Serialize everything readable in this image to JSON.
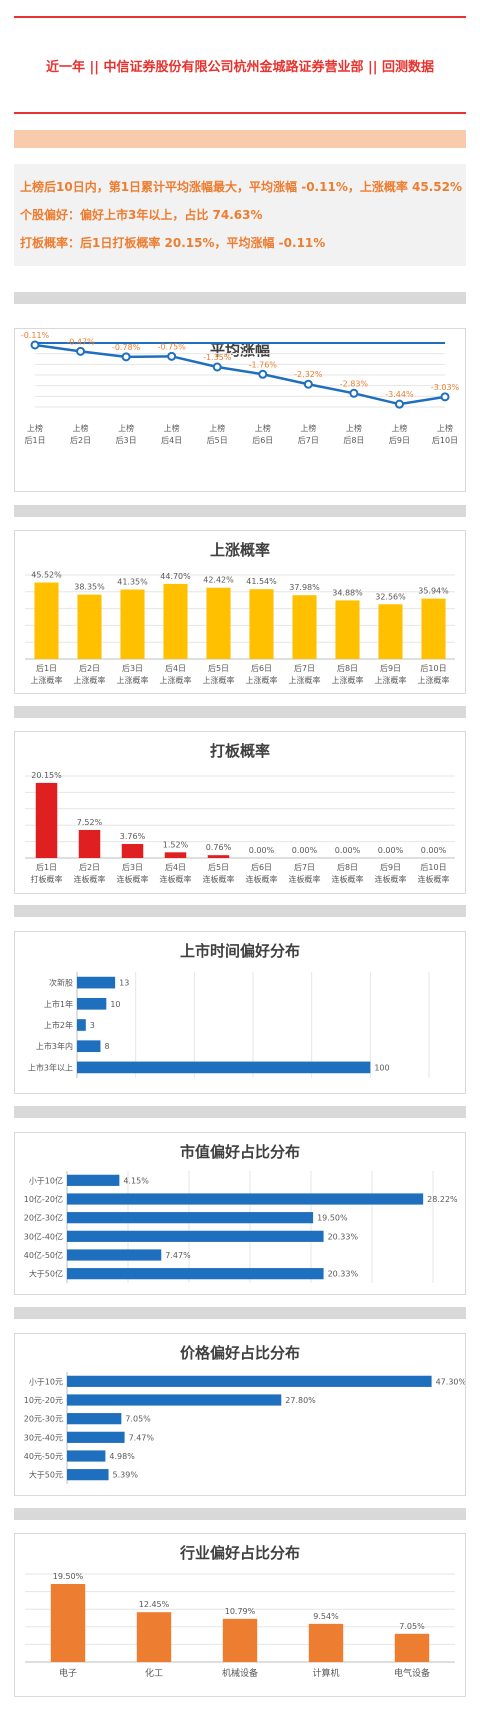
{
  "header": {
    "title": "近一年  ||  中信证券股份有限公司杭州金城路证券营业部  ||  回测数据"
  },
  "summary": {
    "line1": "上榜后10日内，第1日累计平均涨幅最大，平均涨幅 -0.11%，上涨概率 45.52%",
    "line2": "个股偏好：偏好上市3年以上，占比 74.63%",
    "line3": "打板概率：后1日打板概率 20.15%，平均涨幅 -0.11%"
  },
  "colors": {
    "accent_red": "#e8322e",
    "orange": "#ed7d31",
    "yellow": "#ffc000",
    "blue": "#1f6fbf",
    "bar_red": "#e02020"
  },
  "chart_data": [
    {
      "type": "line",
      "title": "平均涨幅",
      "categories": [
        [
          "上榜",
          "后1日"
        ],
        [
          "上榜",
          "后2日"
        ],
        [
          "上榜",
          "后3日"
        ],
        [
          "上榜",
          "后4日"
        ],
        [
          "上榜",
          "后5日"
        ],
        [
          "上榜",
          "后6日"
        ],
        [
          "上榜",
          "后7日"
        ],
        [
          "上榜",
          "后8日"
        ],
        [
          "上榜",
          "后9日"
        ],
        [
          "上榜",
          "后10日"
        ]
      ],
      "values": [
        -0.11,
        -0.47,
        -0.78,
        -0.75,
        -1.35,
        -1.76,
        -2.32,
        -2.83,
        -3.44,
        -3.03
      ],
      "labels": [
        "-0.11%",
        "-0.47%",
        "-0.78%",
        "-0.75%",
        "-1.35%",
        "-1.76%",
        "-2.32%",
        "-2.83%",
        "-3.44%",
        "-3.03%"
      ],
      "ylim": [
        -3.6,
        0
      ],
      "reference_line": 0
    },
    {
      "type": "bar",
      "title": "上涨概率",
      "categories": [
        [
          "后1日",
          "上涨概率"
        ],
        [
          "后2日",
          "上涨概率"
        ],
        [
          "后3日",
          "上涨概率"
        ],
        [
          "后4日",
          "上涨概率"
        ],
        [
          "后5日",
          "上涨概率"
        ],
        [
          "后6日",
          "上涨概率"
        ],
        [
          "后7日",
          "上涨概率"
        ],
        [
          "后8日",
          "上涨概率"
        ],
        [
          "后9日",
          "上涨概率"
        ],
        [
          "后10日",
          "上涨概率"
        ]
      ],
      "values": [
        45.52,
        38.35,
        41.35,
        44.7,
        42.42,
        41.54,
        37.98,
        34.88,
        32.56,
        35.94
      ],
      "labels": [
        "45.52%",
        "38.35%",
        "41.35%",
        "44.70%",
        "42.42%",
        "41.54%",
        "37.98%",
        "34.88%",
        "32.56%",
        "35.94%"
      ],
      "ylim": [
        0,
        50
      ]
    },
    {
      "type": "bar",
      "title": "打板概率",
      "categories": [
        [
          "后1日",
          "打板概率"
        ],
        [
          "后2日",
          "连板概率"
        ],
        [
          "后3日",
          "连板概率"
        ],
        [
          "后4日",
          "连板概率"
        ],
        [
          "后5日",
          "连板概率"
        ],
        [
          "后6日",
          "连板概率"
        ],
        [
          "后7日",
          "连板概率"
        ],
        [
          "后8日",
          "连板概率"
        ],
        [
          "后9日",
          "连板概率"
        ],
        [
          "后10日",
          "连板概率"
        ]
      ],
      "values": [
        20.15,
        7.52,
        3.76,
        1.52,
        0.76,
        0,
        0,
        0,
        0,
        0
      ],
      "labels": [
        "20.15%",
        "7.52%",
        "3.76%",
        "1.52%",
        "0.76%",
        "0.00%",
        "0.00%",
        "0.00%",
        "0.00%",
        "0.00%"
      ],
      "ylim": [
        0,
        22
      ]
    },
    {
      "type": "bar",
      "orientation": "horizontal",
      "title": "上市时间偏好分布",
      "categories": [
        "次新股",
        "上市1年",
        "上市2年",
        "上市3年内",
        "上市3年以上"
      ],
      "values": [
        13,
        10,
        3,
        8,
        100
      ],
      "labels": [
        "13",
        "10",
        "3",
        "8",
        "100"
      ],
      "xlim": [
        0,
        120
      ]
    },
    {
      "type": "bar",
      "orientation": "horizontal",
      "title": "市值偏好占比分布",
      "categories": [
        "小于10亿",
        "10亿-20亿",
        "20亿-30亿",
        "30亿-40亿",
        "40亿-50亿",
        "大于50亿"
      ],
      "values": [
        4.15,
        28.22,
        19.5,
        20.33,
        7.47,
        20.33
      ],
      "labels": [
        "4.15%",
        "28.22%",
        "19.50%",
        "20.33%",
        "7.47%",
        "20.33%"
      ],
      "xlim": [
        0,
        29
      ]
    },
    {
      "type": "bar",
      "orientation": "horizontal",
      "title": "价格偏好占比分布",
      "categories": [
        "小于10元",
        "10元-20元",
        "20元-30元",
        "30元-40元",
        "40元-50元",
        "大于50元"
      ],
      "values": [
        47.3,
        27.8,
        7.05,
        7.47,
        4.98,
        5.39
      ],
      "labels": [
        "47.30%",
        "27.80%",
        "7.05%",
        "7.47%",
        "4.98%",
        "5.39%"
      ],
      "xlim": [
        0,
        48
      ]
    },
    {
      "type": "bar",
      "title": "行业偏好占比分布",
      "categories": [
        "电子",
        "化工",
        "机械设备",
        "计算机",
        "电气设备"
      ],
      "values": [
        19.5,
        12.45,
        10.79,
        9.54,
        7.05
      ],
      "labels": [
        "19.50%",
        "12.45%",
        "10.79%",
        "9.54%",
        "7.05%"
      ],
      "ylim": [
        0,
        22
      ]
    }
  ]
}
